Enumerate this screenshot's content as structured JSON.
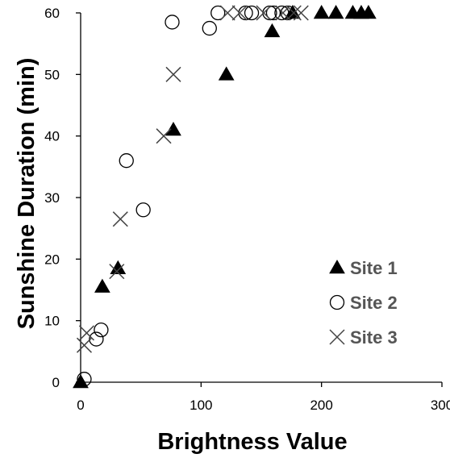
{
  "chart_data": {
    "type": "scatter",
    "title": "",
    "xlabel": "Brightness Value",
    "ylabel": "Sunshine Duration (min)",
    "xlim": [
      0,
      300
    ],
    "ylim": [
      0,
      60
    ],
    "xticks": [
      0,
      100,
      200,
      300
    ],
    "yticks": [
      0,
      10,
      20,
      30,
      40,
      50,
      60
    ],
    "grid": false,
    "legend_position": "bottom-right",
    "series": [
      {
        "name": "Site 1",
        "marker": "filled-triangle",
        "color": "#000000",
        "points": [
          [
            0,
            0
          ],
          [
            18,
            15.5
          ],
          [
            31,
            18.5
          ],
          [
            77,
            41
          ],
          [
            121,
            50
          ],
          [
            159,
            57
          ],
          [
            176,
            60
          ],
          [
            200,
            60
          ],
          [
            212,
            60
          ],
          [
            226,
            60
          ],
          [
            233,
            60
          ],
          [
            239,
            60
          ]
        ]
      },
      {
        "name": "Site 2",
        "marker": "open-circle",
        "color": "#000000",
        "points": [
          [
            3,
            0.5
          ],
          [
            13,
            7
          ],
          [
            17,
            8.5
          ],
          [
            38,
            36
          ],
          [
            52,
            28
          ],
          [
            76,
            58.5
          ],
          [
            107,
            57.5
          ],
          [
            114,
            60
          ],
          [
            137,
            60
          ],
          [
            142,
            60
          ],
          [
            157,
            60
          ],
          [
            160,
            60
          ],
          [
            167,
            60
          ],
          [
            172,
            60
          ]
        ]
      },
      {
        "name": "Site 3",
        "marker": "x-cross",
        "color": "#444444",
        "points": [
          [
            3,
            6
          ],
          [
            5,
            8
          ],
          [
            30,
            18
          ],
          [
            33,
            26.5
          ],
          [
            69,
            40
          ],
          [
            77,
            50
          ],
          [
            122,
            60
          ],
          [
            132,
            60
          ],
          [
            152,
            60
          ],
          [
            168,
            60
          ],
          [
            177,
            60
          ],
          [
            183,
            60
          ]
        ]
      }
    ]
  }
}
